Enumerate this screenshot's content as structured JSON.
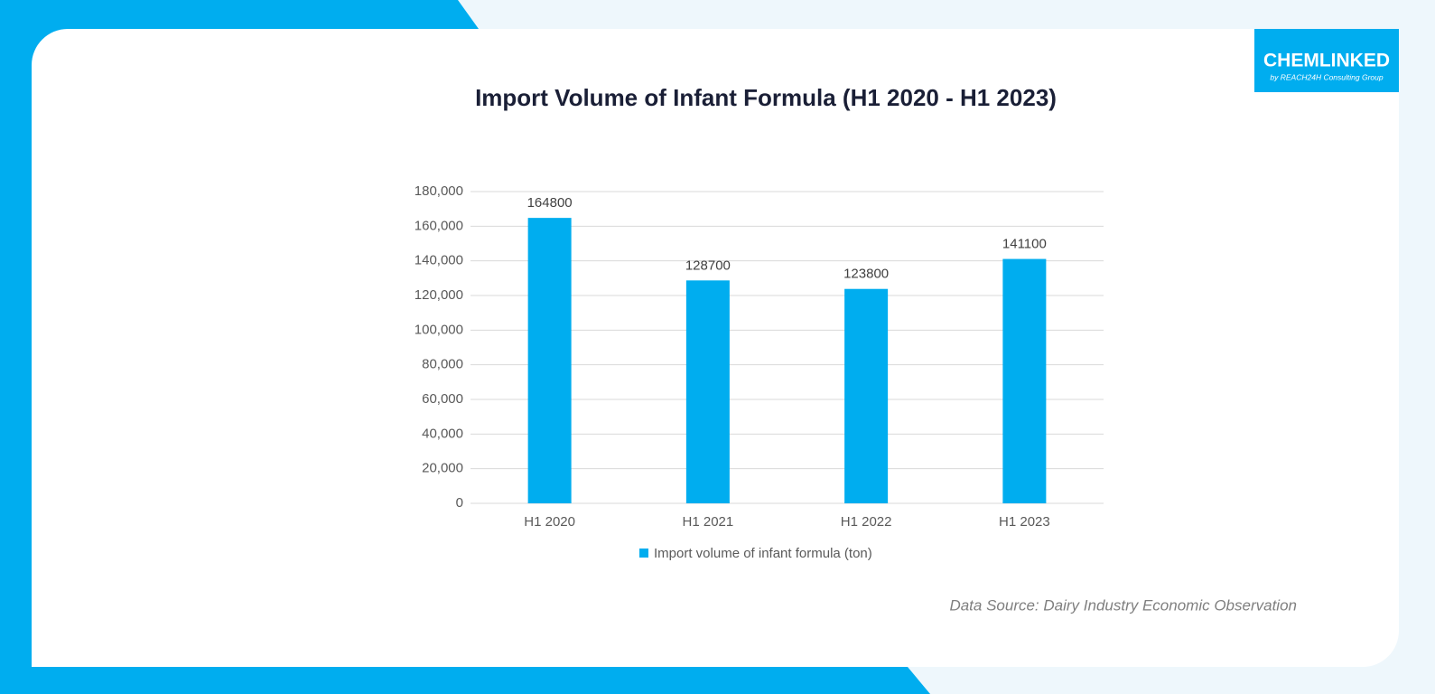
{
  "chart_data": {
    "type": "bar",
    "title": "Import Volume of Infant Formula (H1 2020 - H1 2023)",
    "categories": [
      "H1 2020",
      "H1 2021",
      "H1 2022",
      "H1 2023"
    ],
    "series": [
      {
        "name": "Import volume of infant formula (ton)",
        "color": "#00adef",
        "values": [
          164800,
          128700,
          123800,
          141100
        ]
      }
    ],
    "ylim": [
      0,
      180000
    ],
    "yticks": [
      0,
      {
        "value": 20000,
        "label": "20,000"
      },
      {
        "value": 40000,
        "label": "40,000"
      },
      {
        "value": 60000,
        "label": "60,000"
      },
      {
        "value": 80000,
        "label": "80,000"
      },
      {
        "value": 100000,
        "label": "100,000"
      },
      {
        "value": 120000,
        "label": "120,000"
      },
      {
        "value": 140000,
        "label": "140,000"
      },
      {
        "value": 160000,
        "label": "160,000"
      },
      {
        "value": 180000,
        "label": "180,000"
      }
    ],
    "grid": true,
    "legend": "bottom",
    "source": "Data Source: Dairy Industry Economic Observation"
  },
  "logo": {
    "name": "CHEMLINKED",
    "tagline": "by REACH24H Consulting Group"
  }
}
